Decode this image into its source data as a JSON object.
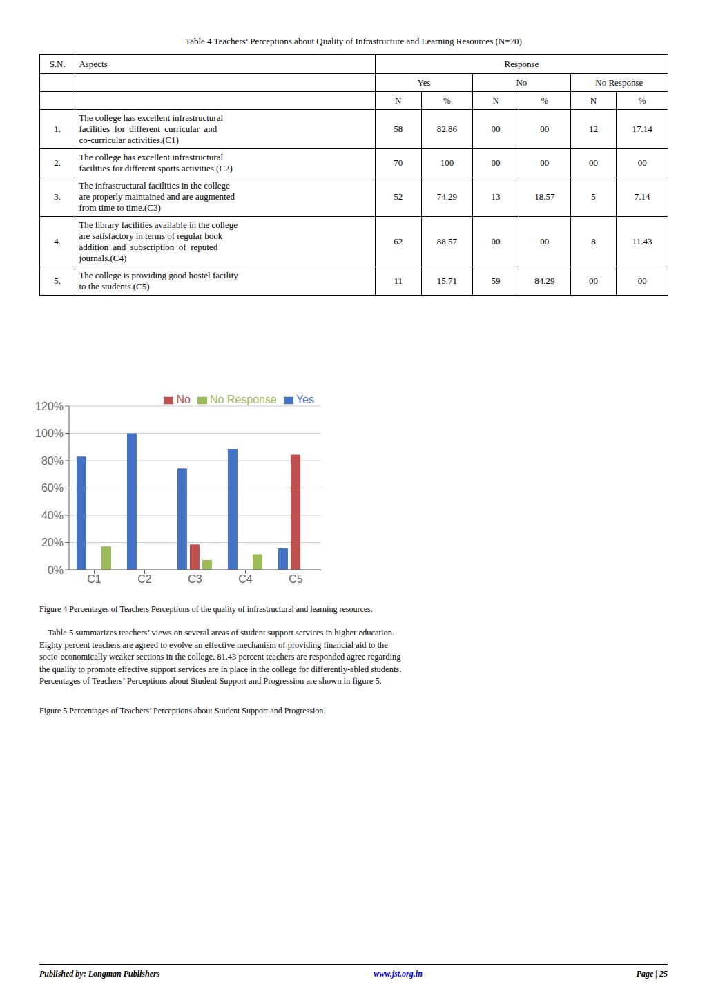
{
  "chart_data": {
    "type": "bar",
    "categories": [
      "C1",
      "C2",
      "C3",
      "C4",
      "C5"
    ],
    "series": [
      {
        "name": "Yes",
        "color": "#4472C4",
        "values": [
          82.86,
          100,
          74.29,
          88.57,
          15.71
        ]
      },
      {
        "name": "No",
        "color": "#C0504D",
        "values": [
          0,
          0,
          18.57,
          0,
          84.29
        ]
      },
      {
        "name": "No Response",
        "color": "#9BBB59",
        "values": [
          17.14,
          0,
          7.14,
          11.43,
          0
        ]
      }
    ],
    "ylim": [
      0,
      120
    ],
    "yticks": [
      {
        "value": 0,
        "label": "0%"
      },
      {
        "value": 20,
        "label": "20%"
      },
      {
        "value": 40,
        "label": "40%"
      },
      {
        "value": 60,
        "label": "60%"
      },
      {
        "value": 80,
        "label": "80%"
      },
      {
        "value": 100,
        "label": "100%"
      },
      {
        "value": 120,
        "label": "120%"
      }
    ],
    "grid": true,
    "legend": "upper right",
    "annotations": [
      "Table 4 Teachers’ Perceptions about Quality of Infrastructure and Learning Resources (N=70)",
      [
        "S.N.",
        "Aspects",
        "Response"
      ],
      [
        "Yes",
        "No",
        "No Response"
      ],
      [
        "N",
        "%",
        "N",
        "%",
        "N",
        "%"
      ],
      [
        "1.",
        [
          "The college has excellent infrastructural",
          "facilities  for  different  curricular  and",
          "co-curricular activities.(C1)"
        ],
        "58",
        "82.86",
        "00",
        "00",
        "12",
        "17.14"
      ],
      [
        "2.",
        [
          "The college has excellent infrastructural",
          "facilities for different sports activities.(C2)"
        ],
        "70",
        "100",
        "00",
        "00",
        "00",
        "00"
      ],
      [
        "3.",
        [
          "The infrastructural facilities in the college",
          "are properly maintained and are augmented",
          "from time to time.(C3)"
        ],
        "52",
        "74.29",
        "13",
        "18.57",
        "5",
        "7.14"
      ],
      [
        "4.",
        [
          "The library facilities available in the college",
          "are satisfactory in terms of regular book",
          "addition  and  subscription  of  reputed",
          "journals.(C4)"
        ],
        "62",
        "88.57",
        "00",
        "00",
        "8",
        "11.43"
      ],
      [
        "5.",
        [
          "The college is providing good hostel facility",
          "to the students.(C5)"
        ],
        "11",
        "15.71",
        "59",
        "84.29",
        "00",
        "00"
      ],
      "Figure 4 Percentages of Teachers Perceptions of the quality of infrastructural and learning resources.",
      "    Table 5 summarizes teachers’ views on several areas of student support services in higher education.",
      "Eighty percent teachers are agreed to evolve an effective mechanism of providing financial aid to the",
      "socio-economically weaker sections in the college. 81.43 percent teachers are responded agree regarding",
      "the quality to promote effective support services are in place in the college for differently-abled students.",
      "Percentages of Teachers’ Perceptions about Student Support and Progression are shown in figure 5.",
      "Figure 5 Percentages of Teachers’ Perceptions about Student Support and Progression.",
      "Published by: Longman Publishers",
      "www.jst.org.in",
      "Page | 25"
    ]
  }
}
